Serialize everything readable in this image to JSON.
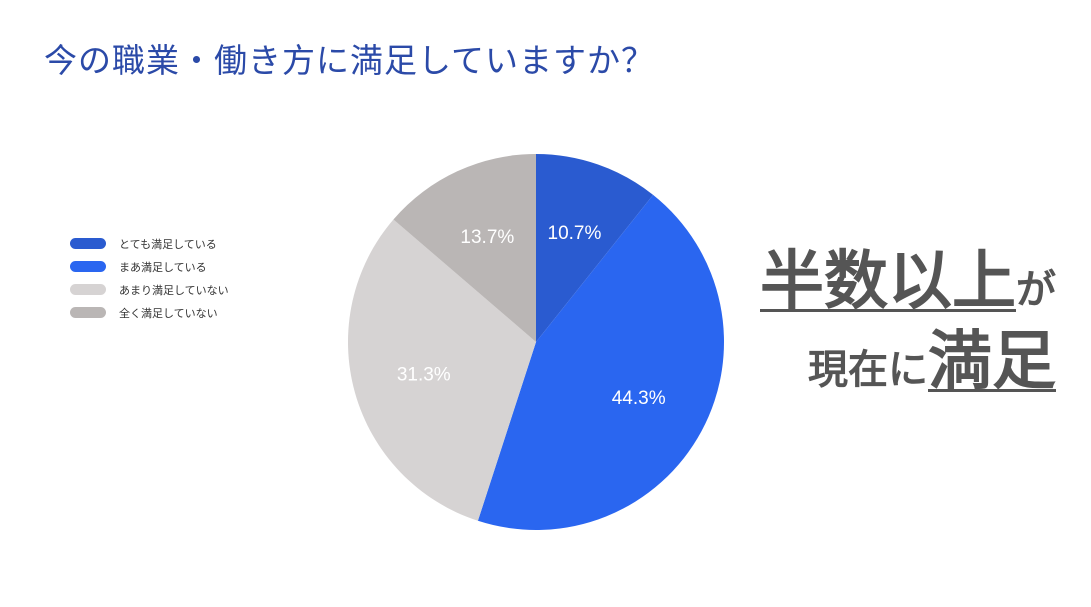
{
  "title": "今の職業・働き方に満足していますか？",
  "chart_data": {
    "type": "pie",
    "categories": [
      "とても満足している",
      "まあ満足している",
      "あまり満足していない",
      "全く満足していない"
    ],
    "values": [
      10.7,
      44.3,
      31.3,
      13.7
    ],
    "labels": [
      "10.7%",
      "44.3%",
      "31.3%",
      "13.7%"
    ],
    "colors": [
      "#2a5bd0",
      "#2a66f0",
      "#d6d3d3",
      "#bab6b5"
    ],
    "legend_position": "left"
  },
  "callout": {
    "line1_big": "半数以上",
    "line1_small": "が",
    "line2_small": "現在に",
    "line2_big": "満足"
  }
}
